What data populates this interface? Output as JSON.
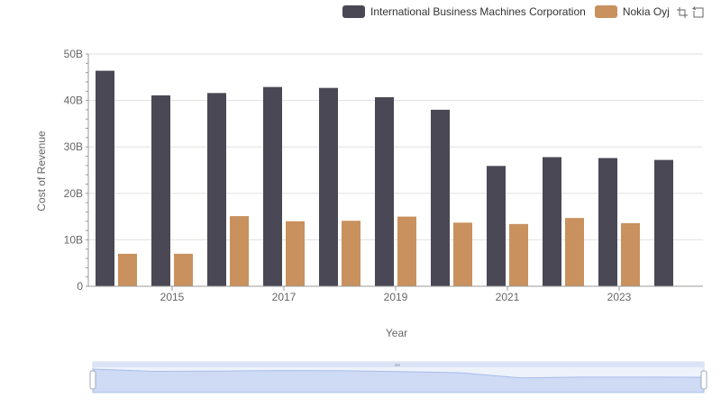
{
  "chart_data": {
    "type": "bar",
    "title": "",
    "xlabel": "Year",
    "ylabel": "Cost of Revenue",
    "x": [
      2014,
      2015,
      2016,
      2017,
      2018,
      2019,
      2020,
      2021,
      2022,
      2023,
      2024
    ],
    "x_tick_labels": [
      "2015",
      "2017",
      "2019",
      "2021",
      "2023"
    ],
    "x_tick_values": [
      2015,
      2017,
      2019,
      2021,
      2023
    ],
    "y_tick_labels": [
      "0",
      "10B",
      "20B",
      "30B",
      "40B",
      "50B"
    ],
    "y_tick_values": [
      0,
      10000000000,
      20000000000,
      30000000000,
      40000000000,
      50000000000
    ],
    "ylim": [
      0,
      50000000000
    ],
    "grid": true,
    "legend_position": "top-right",
    "series": [
      {
        "name": "International Business Machines Corporation",
        "color": "#4a4855",
        "values": [
          46400000000,
          41100000000,
          41600000000,
          42900000000,
          42700000000,
          40700000000,
          38000000000,
          25900000000,
          27800000000,
          27600000000,
          27200000000
        ]
      },
      {
        "name": "Nokia Oyj",
        "color": "#c8915e",
        "values": [
          7000000000,
          7000000000,
          15100000000,
          14000000000,
          14100000000,
          15000000000,
          13700000000,
          13400000000,
          14700000000,
          13600000000,
          null
        ]
      }
    ]
  },
  "toolbar": {
    "icons": [
      "zoom-icon",
      "restore-icon"
    ]
  }
}
